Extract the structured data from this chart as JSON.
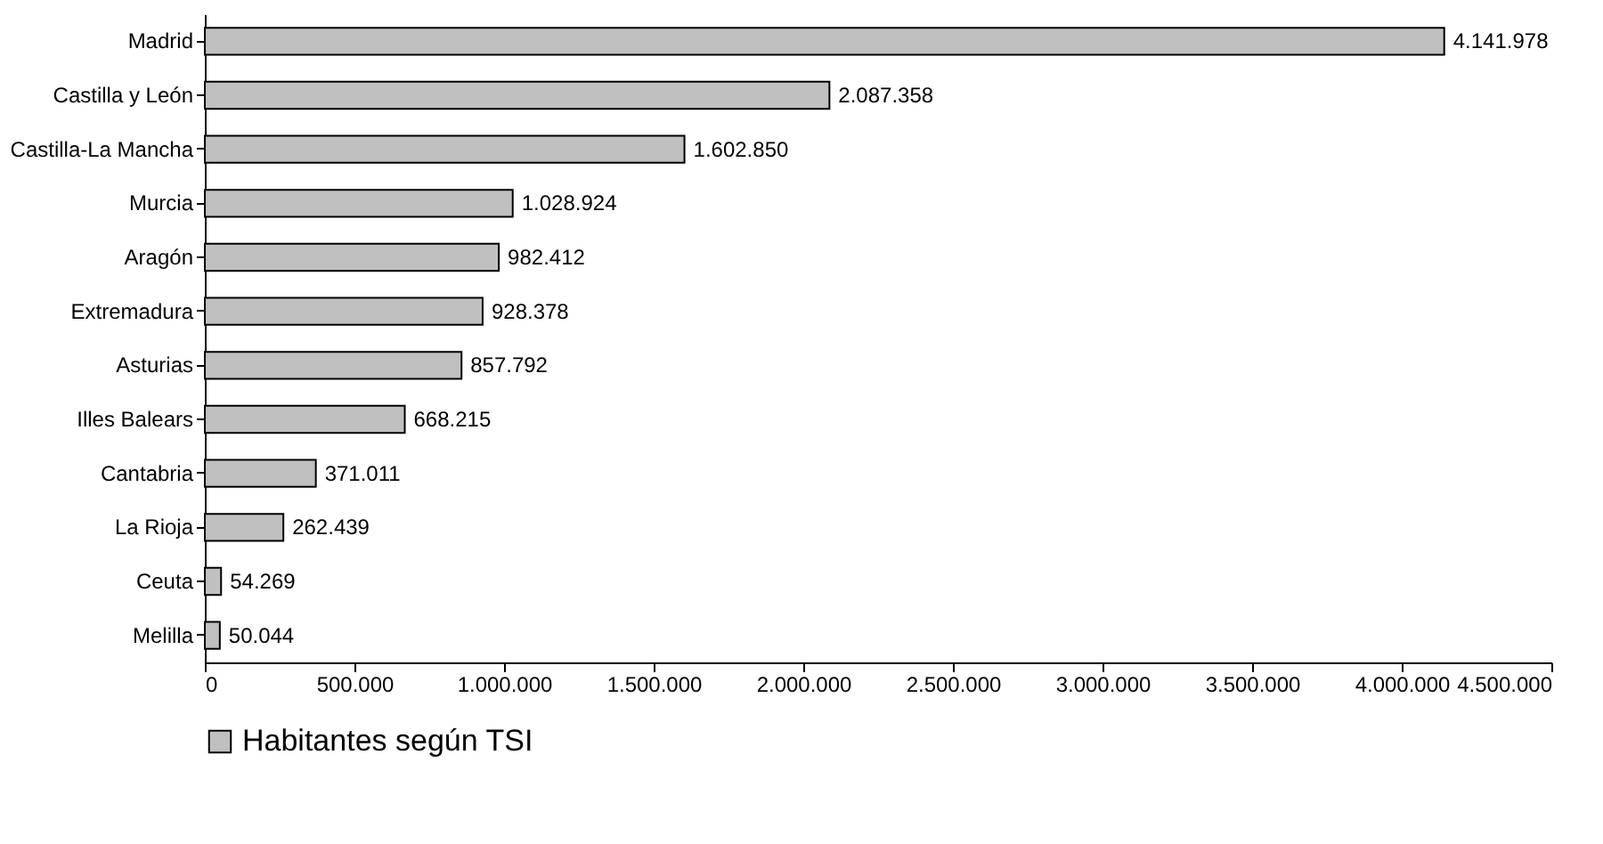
{
  "chart_data": {
    "type": "bar",
    "orientation": "horizontal",
    "categories": [
      "Madrid",
      "Castilla y León",
      "Castilla-La Mancha",
      "Murcia",
      "Aragón",
      "Extremadura",
      "Asturias",
      "Illes Balears",
      "Cantabria",
      "La Rioja",
      "Ceuta",
      "Melilla"
    ],
    "series": [
      {
        "name": "Habitantes según TSI",
        "color": "#c0c0c0",
        "values": [
          4141978,
          2087358,
          1602850,
          1028924,
          982412,
          928378,
          857792,
          668215,
          371011,
          262439,
          54269,
          50044
        ],
        "value_labels": [
          "4.141.978",
          "2.087.358",
          "1.602.850",
          "1.028.924",
          "982.412",
          "928.378",
          "857.792",
          "668.215",
          "371.011",
          "262.439",
          "54.269",
          "50.044"
        ]
      }
    ],
    "xlim": [
      0,
      4500000
    ],
    "xticks": [
      0,
      {
        "value": 500000,
        "label": "500.000"
      },
      {
        "value": 1000000,
        "label": "1.000.000"
      },
      {
        "value": 1500000,
        "label": "1.500.000"
      },
      {
        "value": 2000000,
        "label": "2.000.000"
      },
      {
        "value": 2500000,
        "label": "2.500.000"
      },
      {
        "value": 3000000,
        "label": "3.000.000"
      },
      {
        "value": 3500000,
        "label": "3.500.000"
      },
      {
        "value": 4000000,
        "label": "4.000.000"
      },
      {
        "value": 4500000,
        "label": "4.500.000"
      }
    ],
    "grid": false,
    "legend": "bottom"
  }
}
